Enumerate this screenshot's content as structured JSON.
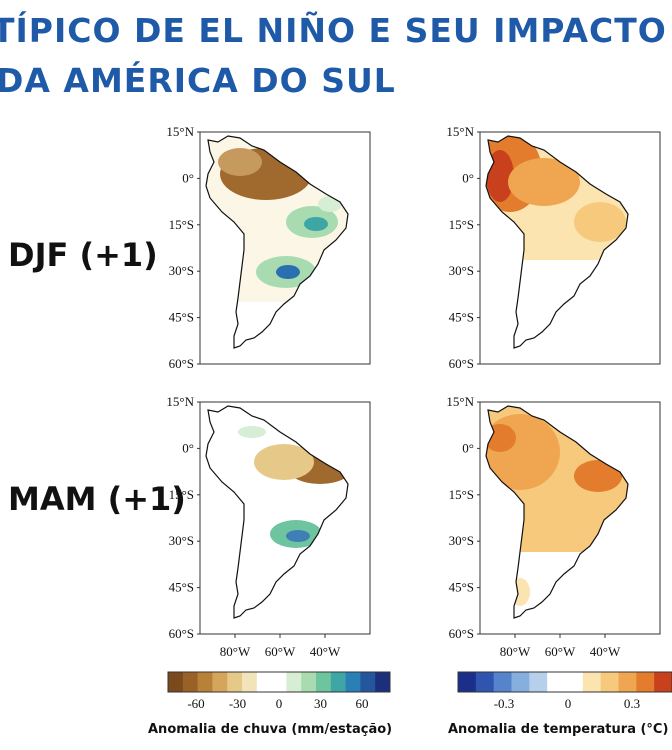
{
  "header": {
    "title_line1": "TÍPICO DE EL NIÑO E SEU IMPACTO",
    "title_line2": "DA AMÉRICA DO SUL"
  },
  "rows": [
    {
      "label": "DJF (+1)"
    },
    {
      "label": "MAM (+1)"
    }
  ],
  "lat_labels": [
    "15°N",
    "0°",
    "15°S",
    "30°S",
    "45°S",
    "60°S"
  ],
  "lon_labels": [
    "80°W",
    "60°W",
    "40°W"
  ],
  "rain_colorbar": {
    "ticks": [
      "-60",
      "-30",
      "0",
      "30",
      "60"
    ],
    "label": "Anomalia de chuva (mm/estação)",
    "colors": [
      "#7a4a1c",
      "#9a6126",
      "#b98038",
      "#d4a55a",
      "#e6c888",
      "#f2e3b8",
      "#ffffff",
      "#ffffff",
      "#d6eed4",
      "#a8dcb0",
      "#6fc4a0",
      "#3fa6a6",
      "#2a7fb5",
      "#23569c",
      "#1c2f7a"
    ]
  },
  "temp_colorbar": {
    "ticks": [
      "-0.3",
      "0",
      "0.3"
    ],
    "label": "Anomalia de temperatura (°C)",
    "colors": [
      "#1b2f8a",
      "#2f55b0",
      "#5684cc",
      "#86aede",
      "#b6d0ec",
      "#ffffff",
      "#ffffff",
      "#fbe4b0",
      "#f7c97d",
      "#f0a650",
      "#e47c2d",
      "#c9401d"
    ]
  },
  "colors": {
    "title": "#1f5aa8",
    "dry_brown": "#a0692e",
    "wet_green": "#6fc4a0",
    "wet_blue": "#2a6fb0",
    "warm_orange": "#e8893a",
    "hot_red": "#c9401d",
    "pale_yellow": "#f9e2b0"
  }
}
